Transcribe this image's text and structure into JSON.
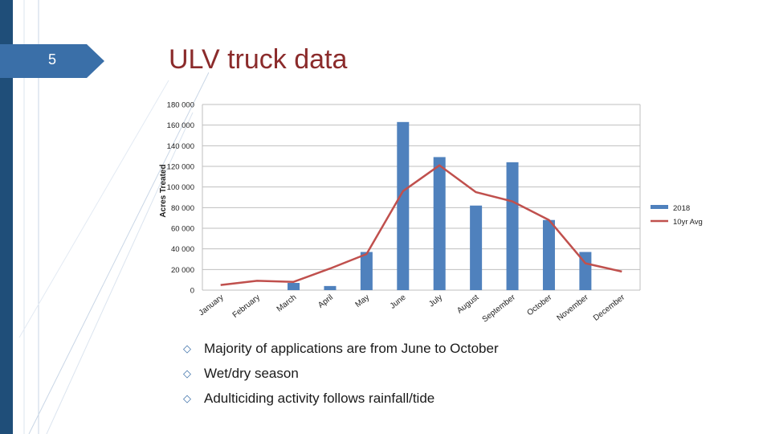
{
  "slide": {
    "number": "5",
    "title": "ULV truck data"
  },
  "bullets": [
    "Majority of applications are from June to October",
    "Wet/dry season",
    "Adulticiding activity follows rainfall/tide"
  ],
  "colors": {
    "bar": "#4f81bd",
    "line": "#c0504d",
    "title": "#8b2b2b",
    "accent": "#3a6fa8"
  },
  "chart_data": {
    "type": "bar",
    "categories": [
      "January",
      "February",
      "March",
      "April",
      "May",
      "June",
      "July",
      "August",
      "September",
      "October",
      "November",
      "December"
    ],
    "series": [
      {
        "name": "2018",
        "type": "bar",
        "values": [
          0,
          0,
          7000,
          4000,
          37000,
          163000,
          129000,
          82000,
          124000,
          68000,
          37000,
          0
        ]
      },
      {
        "name": "10yr Avg",
        "type": "line",
        "values": [
          5000,
          9000,
          8000,
          21000,
          35000,
          96000,
          121000,
          95000,
          86000,
          68000,
          26000,
          18000
        ]
      }
    ],
    "ylabel": "Acres Treated",
    "ylim": [
      0,
      180000
    ],
    "yticks": [
      0,
      20000,
      40000,
      60000,
      80000,
      100000,
      120000,
      140000,
      160000,
      180000
    ],
    "ytick_labels": [
      "0",
      "20 000",
      "40 000",
      "60 000",
      "80 000",
      "100 000",
      "120 000",
      "140 000",
      "160 000",
      "180 000"
    ],
    "grid": true,
    "legend": "right"
  }
}
